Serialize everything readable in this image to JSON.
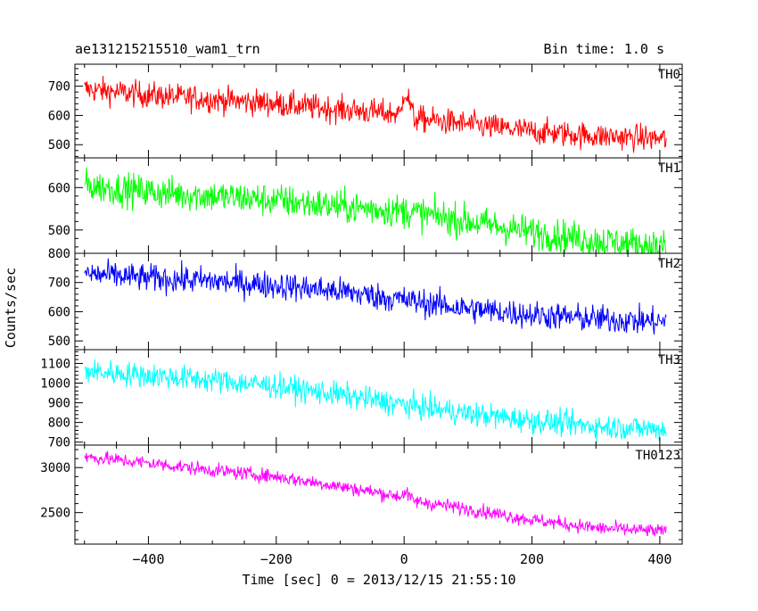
{
  "chart_data": {
    "type": "line",
    "title": "ae131215215510_wam1_trn",
    "subtitle": "Bin time: 1.0 s",
    "xlabel": "Time [sec] 0 = 2013/12/15 21:55:10",
    "ylabel": "Counts/sec",
    "xlim": [
      -515,
      435
    ],
    "x_range": [
      -500,
      410
    ],
    "x_ticks": [
      -400,
      -200,
      0,
      200,
      400
    ],
    "x_tick_labels": [
      "−400",
      "−200",
      "0",
      "200",
      "400"
    ],
    "grid": false,
    "panels": [
      {
        "name": "TH0",
        "color": "#ff0000",
        "ylim": [
          455,
          775
        ],
        "y_ticks": [
          500,
          600,
          700
        ],
        "y_tick_labels": [
          "500",
          "600",
          "700"
        ],
        "trend": [
          [
            -500,
            690
          ],
          [
            -400,
            670
          ],
          [
            -300,
            655
          ],
          [
            -200,
            640
          ],
          [
            -100,
            620
          ],
          [
            -5,
            605
          ],
          [
            0,
            690
          ],
          [
            8,
            650
          ],
          [
            15,
            590
          ],
          [
            100,
            570
          ],
          [
            200,
            545
          ],
          [
            300,
            530
          ],
          [
            410,
            520
          ]
        ],
        "noise_amplitude": 32
      },
      {
        "name": "TH1",
        "color": "#00ff00",
        "ylim": [
          445,
          670
        ],
        "y_ticks": [
          500,
          600
        ],
        "y_tick_labels": [
          "500",
          "600"
        ],
        "trend": [
          [
            -500,
            605
          ],
          [
            -400,
            590
          ],
          [
            -300,
            580
          ],
          [
            -200,
            570
          ],
          [
            -100,
            555
          ],
          [
            0,
            545
          ],
          [
            100,
            520
          ],
          [
            200,
            495
          ],
          [
            300,
            475
          ],
          [
            410,
            460
          ]
        ],
        "noise_amplitude": 28
      },
      {
        "name": "TH2",
        "color": "#0000ff",
        "ylim": [
          470,
          800
        ],
        "y_ticks": [
          500,
          600,
          700,
          800
        ],
        "y_tick_labels": [
          "500",
          "600",
          "700",
          "800"
        ],
        "trend": [
          [
            -500,
            730
          ],
          [
            -400,
            715
          ],
          [
            -300,
            705
          ],
          [
            -200,
            690
          ],
          [
            -100,
            670
          ],
          [
            0,
            640
          ],
          [
            100,
            610
          ],
          [
            200,
            590
          ],
          [
            300,
            575
          ],
          [
            410,
            565
          ]
        ],
        "noise_amplitude": 34
      },
      {
        "name": "TH3",
        "color": "#00ffff",
        "ylim": [
          685,
          1170
        ],
        "y_ticks": [
          700,
          800,
          900,
          1000,
          1100
        ],
        "y_tick_labels": [
          "700",
          "800",
          "900",
          "1000",
          "1100"
        ],
        "trend": [
          [
            -500,
            1060
          ],
          [
            -400,
            1040
          ],
          [
            -300,
            1015
          ],
          [
            -200,
            985
          ],
          [
            -100,
            940
          ],
          [
            0,
            890
          ],
          [
            100,
            845
          ],
          [
            200,
            810
          ],
          [
            300,
            780
          ],
          [
            410,
            765
          ]
        ],
        "noise_amplitude": 45
      },
      {
        "name": "TH0123",
        "color": "#ff00ff",
        "ylim": [
          2150,
          3250
        ],
        "y_ticks": [
          2500,
          3000
        ],
        "y_tick_labels": [
          "2500",
          "3000"
        ],
        "trend": [
          [
            -500,
            3120
          ],
          [
            -400,
            3050
          ],
          [
            -300,
            2970
          ],
          [
            -200,
            2900
          ],
          [
            -100,
            2790
          ],
          [
            -5,
            2680
          ],
          [
            0,
            2730
          ],
          [
            15,
            2630
          ],
          [
            100,
            2540
          ],
          [
            200,
            2420
          ],
          [
            300,
            2330
          ],
          [
            410,
            2290
          ]
        ],
        "noise_amplitude": 55
      }
    ]
  }
}
